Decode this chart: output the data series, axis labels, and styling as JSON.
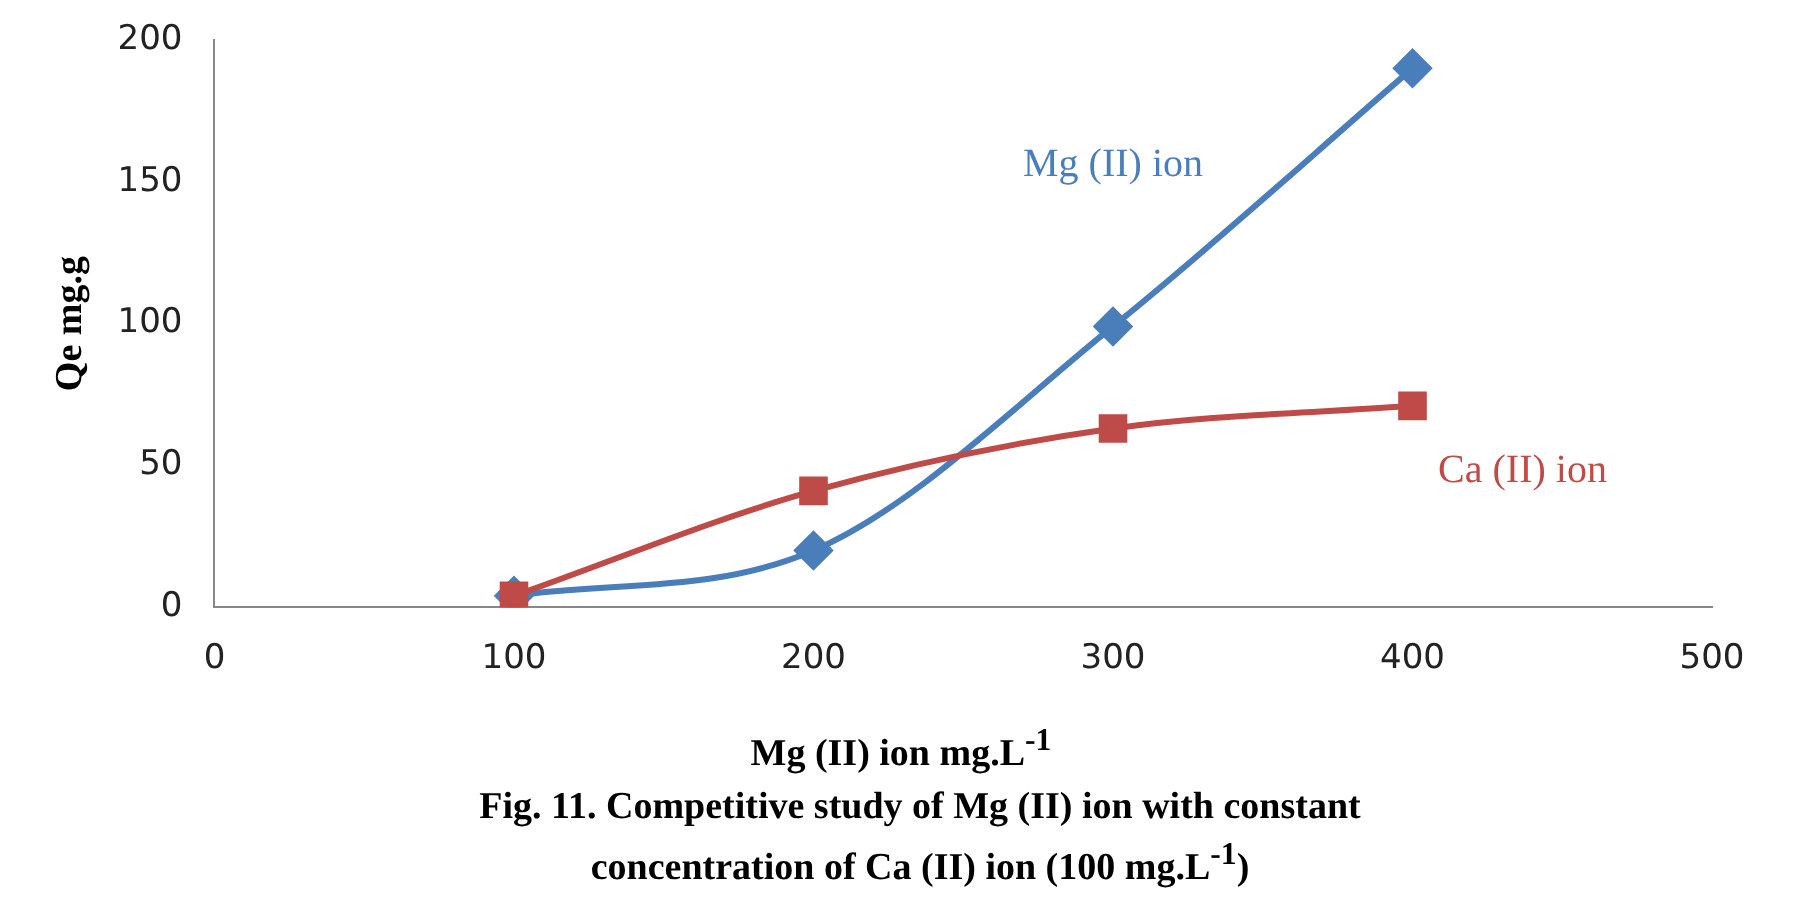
{
  "chart_data": {
    "type": "line",
    "title": "Fig. 11. Competitive study of Mg (II) ion with constant concentration of Ca (II) ion (100 mg.L$^{-1}$)",
    "xlabel": "Mg (II) ion mg.L$^{-1}$",
    "ylabel": "Qe mg.g",
    "x": [
      100,
      200,
      300,
      400
    ],
    "series": [
      {
        "name": "Mg (II) ion",
        "color": "#4a7ebb",
        "marker": "diamond",
        "values": [
          4,
          20,
          99,
          190
        ]
      },
      {
        "name": "Ca (II) ion",
        "color": "#be4b48",
        "marker": "square",
        "values": [
          4,
          41,
          63,
          71
        ]
      }
    ],
    "xlim": [
      0,
      500
    ],
    "xticks": [
      0,
      100,
      200,
      300,
      400,
      500
    ],
    "ylim": [
      0,
      200
    ],
    "yticks": [
      0,
      50,
      100,
      150,
      200
    ],
    "grid": false,
    "legend": false
  }
}
